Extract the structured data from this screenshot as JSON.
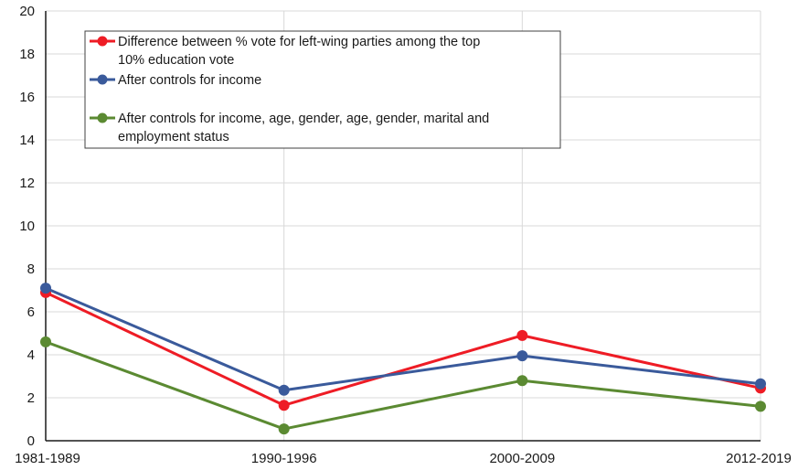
{
  "chart_data": {
    "type": "line",
    "categories": [
      "1981-1989",
      "1990-1996",
      "2000-2009",
      "2012-2019"
    ],
    "ylim": [
      0,
      20
    ],
    "yticks": [
      0,
      2,
      4,
      6,
      8,
      10,
      12,
      14,
      16,
      18,
      20
    ],
    "grid": true,
    "legend_position": "top-left",
    "series": [
      {
        "name_lines": [
          "Difference between % vote for left-wing parties among the top",
          "10% education vote"
        ],
        "color": "#ee1c25",
        "values": [
          6.9,
          1.65,
          4.9,
          2.45
        ]
      },
      {
        "name_lines": [
          "After controls for income"
        ],
        "color": "#3a5a9b",
        "values": [
          7.1,
          2.35,
          3.95,
          2.65
        ]
      },
      {
        "name_lines": [
          "After controls for income, age, gender, age, gender, marital and",
          "employment status"
        ],
        "color": "#5b8a32",
        "values": [
          4.6,
          0.55,
          2.8,
          1.6
        ]
      }
    ]
  }
}
